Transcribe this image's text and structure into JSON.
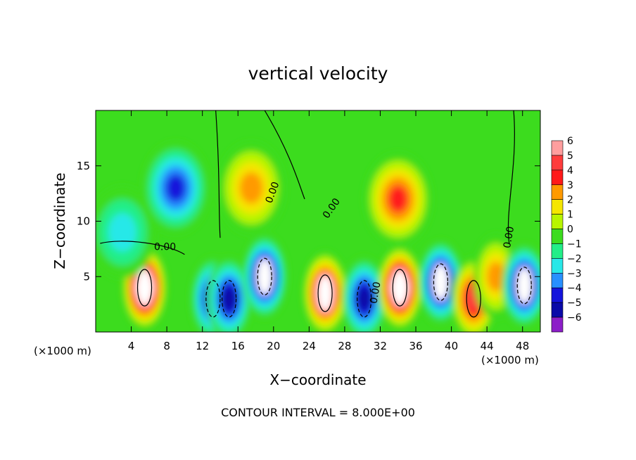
{
  "chart_data": {
    "type": "heatmap",
    "title": "vertical velocity",
    "xlabel": "X−coordinate",
    "ylabel": "Z−coordinate",
    "x_unit": "(×1000 m)",
    "x_unit_right": "(×1000 m)",
    "xlim": [
      0,
      50
    ],
    "ylim": [
      0,
      20
    ],
    "x_ticks": [
      4,
      8,
      12,
      16,
      20,
      24,
      28,
      32,
      36,
      40,
      44,
      48
    ],
    "y_ticks": [
      5,
      10,
      15
    ],
    "colorbar": {
      "levels": [
        6,
        5,
        4,
        3,
        2,
        1,
        0,
        -1,
        -2,
        -3,
        -4,
        -5,
        -6
      ],
      "labels": [
        "6",
        "5",
        "4",
        "3",
        "2",
        "1",
        "0",
        "−1",
        "−2",
        "−3",
        "−4",
        "−5",
        "−6"
      ],
      "colors": [
        "#ff9e9e",
        "#ff3c3c",
        "#ff1a1a",
        "#ff9a00",
        "#f5e600",
        "#b8f500",
        "#3cdc1e",
        "#22ee88",
        "#28e8e8",
        "#2890ff",
        "#1414dc",
        "#0a0aa8",
        "#8c1ec8"
      ]
    },
    "features": [
      {
        "x": 5.5,
        "z": 4.0,
        "w": 6.5
      },
      {
        "x": 13.2,
        "z": 3.0,
        "w": -5.0
      },
      {
        "x": 15.0,
        "z": 3.0,
        "w": -5.0
      },
      {
        "x": 19.0,
        "z": 5.0,
        "w": -5.5
      },
      {
        "x": 25.8,
        "z": 3.5,
        "w": 6.0
      },
      {
        "x": 30.2,
        "z": 3.0,
        "w": -5.0
      },
      {
        "x": 34.2,
        "z": 4.0,
        "w": 6.5
      },
      {
        "x": 38.8,
        "z": 4.5,
        "w": -5.5
      },
      {
        "x": 42.5,
        "z": 3.0,
        "w": 4.5
      },
      {
        "x": 45.0,
        "z": 5.0,
        "w": 3.0
      },
      {
        "x": 48.2,
        "z": 4.2,
        "w": -5.5
      },
      {
        "x": 9.0,
        "z": 13.0,
        "w": -3.5
      },
      {
        "x": 34.0,
        "z": 12.0,
        "w": 4.0
      },
      {
        "x": 17.5,
        "z": 13.0,
        "w": 2.5
      },
      {
        "x": 3.0,
        "z": 9.0,
        "w": -2.0
      }
    ],
    "contour_labels": [
      "0.00",
      "0.00",
      "0.00",
      "0.00",
      "0.00"
    ],
    "footer": "CONTOUR INTERVAL = 8.000E+00"
  }
}
